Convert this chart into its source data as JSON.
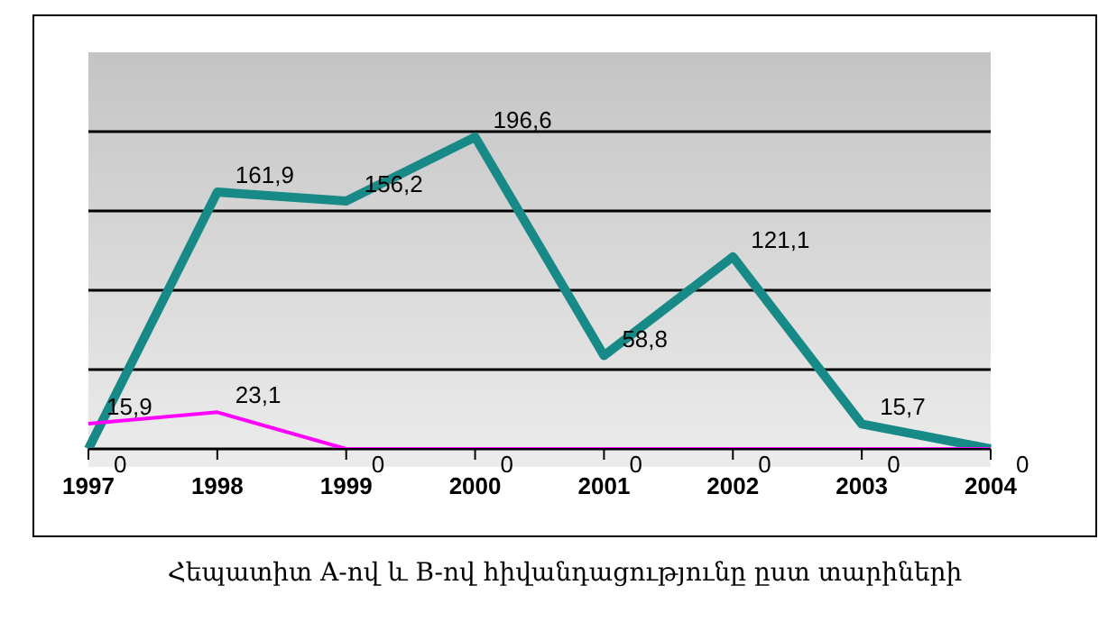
{
  "chart_data": {
    "type": "line",
    "title": "Հեպատիտ A-ով և B-ով հիվանդացությունը ըստ տարիների",
    "categories": [
      "1997",
      "1998",
      "1999",
      "2000",
      "2001",
      "2002",
      "2003",
      "2004"
    ],
    "series": [
      {
        "color": "#178a87",
        "values": [
          0,
          161.9,
          156.2,
          196.6,
          58.8,
          121.1,
          15.7,
          0
        ],
        "value_labels": [
          "0",
          "161,9",
          "156,2",
          "196,6",
          "58,8",
          "121,1",
          "15,7",
          "0"
        ]
      },
      {
        "color": "#ff00ff",
        "values": [
          15.9,
          23.1,
          0,
          0,
          0,
          0,
          0,
          0
        ],
        "value_labels": [
          "15,9",
          "23,1",
          "0",
          "0",
          "0",
          "0",
          "0",
          null
        ]
      }
    ],
    "ylim": [
      0,
      250
    ],
    "yticks": [
      {
        "value": 0,
        "label": null
      },
      {
        "value": 50,
        "label": null
      },
      {
        "value": 100,
        "label": null
      },
      {
        "value": 150,
        "label": null
      },
      {
        "value": 200,
        "label": null
      }
    ],
    "grid": "y",
    "tick_labels": "x",
    "marker": "none"
  }
}
